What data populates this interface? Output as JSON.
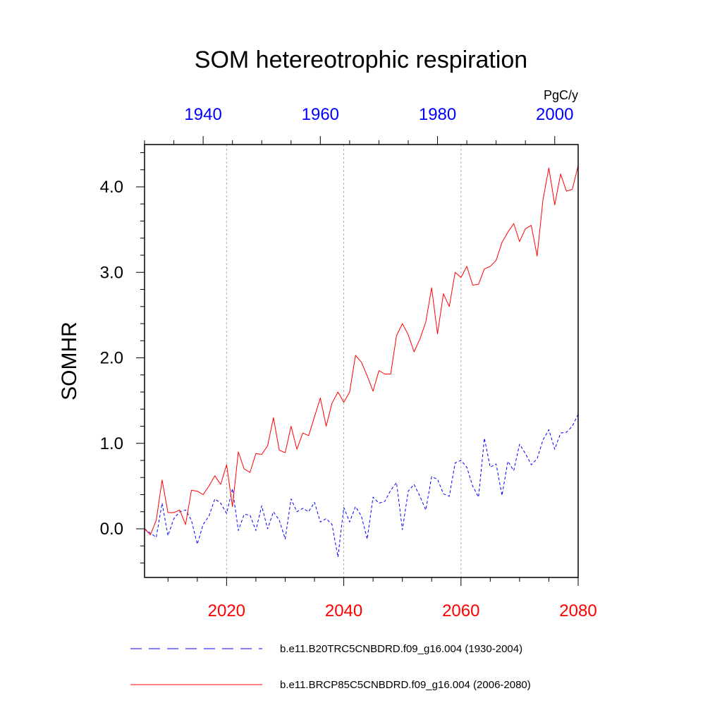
{
  "chart_data": {
    "type": "line",
    "title": "SOM hetereotrophic respiration",
    "units": "PgC/y",
    "ylabel": "SOMHR",
    "ylim": [
      -0.58,
      4.5
    ],
    "y_ticks": [
      0.0,
      1.0,
      2.0,
      3.0,
      4.0
    ],
    "y_tick_labels": [
      "0.0",
      "1.0",
      "2.0",
      "3.0",
      "4.0"
    ],
    "x_bottom": {
      "range": [
        2006,
        2080
      ],
      "ticks": [
        2020,
        2040,
        2060,
        2080
      ],
      "tick_labels": [
        "2020",
        "2040",
        "2060",
        "2080"
      ],
      "color": "#ff0000"
    },
    "x_top": {
      "range": [
        1930,
        2004
      ],
      "ticks": [
        1940,
        1960,
        1980,
        2000
      ],
      "tick_labels": [
        "1940",
        "1960",
        "1980",
        "2000"
      ],
      "color": "#0000ff"
    },
    "gridlines_x": [
      2020,
      2040,
      2060
    ],
    "series": [
      {
        "name": "b.e11.B20TRC5CNBDRD.f09_g16.004 (1930-2004)",
        "axis": "top",
        "style": "dashed",
        "color": "#0000ff",
        "x": [
          1930,
          1931,
          1932,
          1933,
          1934,
          1935,
          1936,
          1937,
          1938,
          1939,
          1940,
          1941,
          1942,
          1943,
          1944,
          1945,
          1946,
          1947,
          1948,
          1949,
          1950,
          1951,
          1952,
          1953,
          1954,
          1955,
          1956,
          1957,
          1958,
          1959,
          1960,
          1961,
          1962,
          1963,
          1964,
          1965,
          1966,
          1967,
          1968,
          1969,
          1970,
          1971,
          1972,
          1973,
          1974,
          1975,
          1976,
          1977,
          1978,
          1979,
          1980,
          1981,
          1982,
          1983,
          1984,
          1985,
          1986,
          1987,
          1988,
          1989,
          1990,
          1991,
          1992,
          1993,
          1994,
          1995,
          1996,
          1997,
          1998,
          1999,
          2000,
          2001,
          2002,
          2003,
          2004
        ],
        "values": [
          0.0,
          -0.05,
          -0.1,
          0.3,
          -0.08,
          0.12,
          0.2,
          0.22,
          0.1,
          -0.18,
          0.05,
          0.15,
          0.35,
          0.3,
          0.18,
          0.47,
          -0.02,
          0.17,
          0.16,
          -0.02,
          0.27,
          0.0,
          0.2,
          0.1,
          -0.12,
          0.35,
          0.2,
          0.24,
          0.2,
          0.31,
          0.08,
          0.12,
          0.05,
          -0.33,
          0.25,
          0.08,
          0.26,
          0.15,
          -0.12,
          0.37,
          0.3,
          0.32,
          0.45,
          0.54,
          -0.01,
          0.44,
          0.52,
          0.38,
          0.22,
          0.61,
          0.58,
          0.41,
          0.38,
          0.77,
          0.8,
          0.72,
          0.5,
          0.37,
          1.06,
          0.72,
          0.76,
          0.39,
          0.79,
          0.68,
          0.99,
          0.88,
          0.75,
          0.82,
          1.04,
          1.16,
          0.93,
          1.12,
          1.13,
          1.2,
          1.34
        ]
      },
      {
        "name": "b.e11.BRCP85C5CNBDRD.f09_g16.004 (2006-2080)",
        "axis": "bottom",
        "style": "solid",
        "color": "#ff0000",
        "x": [
          2006,
          2007,
          2008,
          2009,
          2010,
          2011,
          2012,
          2013,
          2014,
          2015,
          2016,
          2017,
          2018,
          2019,
          2020,
          2021,
          2022,
          2023,
          2024,
          2025,
          2026,
          2027,
          2028,
          2029,
          2030,
          2031,
          2032,
          2033,
          2034,
          2035,
          2036,
          2037,
          2038,
          2039,
          2040,
          2041,
          2042,
          2043,
          2044,
          2045,
          2046,
          2047,
          2048,
          2049,
          2050,
          2051,
          2052,
          2053,
          2054,
          2055,
          2056,
          2057,
          2058,
          2059,
          2060,
          2061,
          2062,
          2063,
          2064,
          2065,
          2066,
          2067,
          2068,
          2069,
          2070,
          2071,
          2072,
          2073,
          2074,
          2075,
          2076,
          2077,
          2078,
          2079,
          2080
        ],
        "values": [
          0.0,
          -0.07,
          0.1,
          0.57,
          0.19,
          0.19,
          0.22,
          0.05,
          0.45,
          0.44,
          0.4,
          0.5,
          0.62,
          0.52,
          0.75,
          0.26,
          0.9,
          0.7,
          0.66,
          0.88,
          0.87,
          0.97,
          1.3,
          0.92,
          0.89,
          1.2,
          0.93,
          1.12,
          1.09,
          1.31,
          1.53,
          1.2,
          1.47,
          1.6,
          1.48,
          1.6,
          2.03,
          1.95,
          1.79,
          1.61,
          1.85,
          1.81,
          1.81,
          2.26,
          2.4,
          2.27,
          2.07,
          2.22,
          2.42,
          2.82,
          2.28,
          2.75,
          2.6,
          3.0,
          2.94,
          3.07,
          2.85,
          2.86,
          3.04,
          3.07,
          3.14,
          3.35,
          3.47,
          3.57,
          3.36,
          3.51,
          3.55,
          3.19,
          3.85,
          4.22,
          3.79,
          4.15,
          3.95,
          3.97,
          4.25
        ]
      }
    ]
  }
}
